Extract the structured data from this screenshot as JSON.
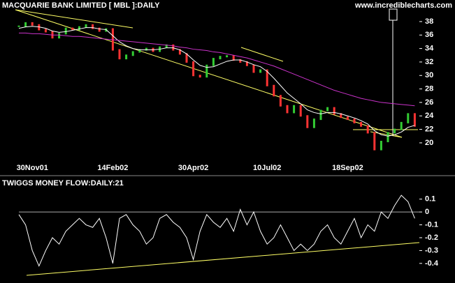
{
  "site": "www.incrediblecharts.com",
  "chart_data": [
    {
      "type": "line",
      "title": "MACQUARIE BANK LIMITED [ MBL ]:DAILY",
      "categories": [
        null,
        null,
        "30Nov01",
        null,
        null,
        null,
        null,
        null,
        null,
        null,
        null,
        null,
        null,
        null,
        "14Feb02",
        null,
        null,
        null,
        null,
        null,
        null,
        null,
        null,
        null,
        null,
        null,
        "30Apr02",
        null,
        null,
        null,
        null,
        null,
        null,
        null,
        null,
        null,
        null,
        "10Jul02",
        null,
        null,
        null,
        null,
        null,
        null,
        null,
        null,
        null,
        null,
        null,
        "18Sep02",
        null,
        null,
        null,
        null,
        null,
        null,
        null,
        null,
        null,
        null
      ],
      "series": [
        {
          "color": "#33cc33",
          "down_color": "#ff3333",
          "values": [
            37.3,
            37.8,
            37.5,
            36.8,
            36.5,
            35.6,
            36.2,
            37.0,
            36.8,
            37.2,
            37.5,
            37.0,
            36.6,
            36.9,
            33.8,
            32.5,
            33.0,
            33.5,
            33.8,
            34.0,
            33.6,
            34.2,
            34.5,
            33.8,
            33.2,
            32.0,
            30.0,
            29.8,
            31.5,
            32.5,
            32.8,
            32.9,
            32.3,
            32.0,
            31.5,
            30.5,
            30.8,
            28.5,
            27.0,
            25.5,
            24.5,
            25.5,
            24.0,
            22.3,
            23.5,
            24.8,
            25.2,
            24.3,
            23.8,
            23.5,
            23.0,
            22.5,
            21.5,
            19.0,
            20.2,
            21.5,
            22.0,
            23.0,
            24.3,
            22.5
          ]
        },
        {
          "color": "#ffffff",
          "values": [
            37.0,
            37.2,
            37.3,
            37.2,
            37.0,
            36.6,
            36.4,
            36.5,
            36.7,
            36.9,
            37.1,
            37.1,
            36.9,
            36.8,
            35.9,
            35.0,
            34.4,
            34.0,
            33.8,
            33.8,
            33.8,
            33.9,
            34.1,
            34.1,
            33.8,
            33.2,
            32.3,
            31.5,
            31.2,
            31.3,
            31.7,
            32.1,
            32.3,
            32.3,
            32.0,
            31.6,
            31.3,
            30.6,
            29.6,
            28.5,
            27.4,
            26.6,
            25.8,
            24.9,
            24.5,
            24.3,
            24.5,
            24.5,
            24.3,
            24.0,
            23.7,
            23.3,
            22.8,
            21.8,
            21.2,
            21.0,
            21.2,
            21.6,
            22.3,
            22.6
          ]
        },
        {
          "color": "#cc33cc",
          "values": [
            36.3,
            36.3,
            36.2,
            36.2,
            36.1,
            36.0,
            36.0,
            35.9,
            35.8,
            35.8,
            35.7,
            35.6,
            35.5,
            35.4,
            35.3,
            35.2,
            35.1,
            35.0,
            34.9,
            34.8,
            34.7,
            34.6,
            34.5,
            34.4,
            34.2,
            34.1,
            33.9,
            33.8,
            33.7,
            33.5,
            33.4,
            33.2,
            33.0,
            32.8,
            32.6,
            32.3,
            32.0,
            31.7,
            31.4,
            31.0,
            30.6,
            30.2,
            29.8,
            29.4,
            29.0,
            28.6,
            28.2,
            27.8,
            27.5,
            27.2,
            26.9,
            26.6,
            26.4,
            26.2,
            26.0,
            25.9,
            25.8,
            25.7,
            25.6,
            25.5
          ]
        }
      ],
      "ylim": [
        17.2,
        41.2
      ],
      "yticks": [
        20,
        22,
        24,
        26,
        28,
        30,
        32,
        34,
        36,
        38
      ]
    },
    {
      "type": "line",
      "title": "TWIGGS MONEY FLOW:DAILY:21",
      "series": [
        {
          "color": "#ffffff",
          "values": [
            -0.02,
            -0.1,
            -0.3,
            -0.42,
            -0.3,
            -0.2,
            -0.25,
            -0.15,
            -0.1,
            -0.05,
            -0.1,
            -0.12,
            -0.05,
            -0.2,
            -0.4,
            -0.05,
            -0.02,
            -0.1,
            -0.15,
            -0.25,
            -0.2,
            -0.05,
            -0.02,
            -0.08,
            -0.12,
            -0.2,
            -0.37,
            -0.15,
            -0.02,
            -0.08,
            -0.12,
            -0.05,
            -0.15,
            0.02,
            -0.1,
            0.0,
            -0.15,
            -0.25,
            -0.2,
            -0.1,
            -0.2,
            -0.3,
            -0.25,
            -0.3,
            -0.25,
            -0.15,
            -0.1,
            -0.2,
            -0.25,
            -0.15,
            -0.05,
            -0.2,
            -0.1,
            -0.15,
            0.0,
            -0.05,
            0.05,
            0.13,
            0.08,
            -0.05
          ]
        }
      ],
      "ylim": [
        -0.52,
        0.25
      ],
      "yticks": [
        0.1,
        0,
        -0.1,
        -0.2,
        -0.3,
        -0.4
      ]
    }
  ]
}
